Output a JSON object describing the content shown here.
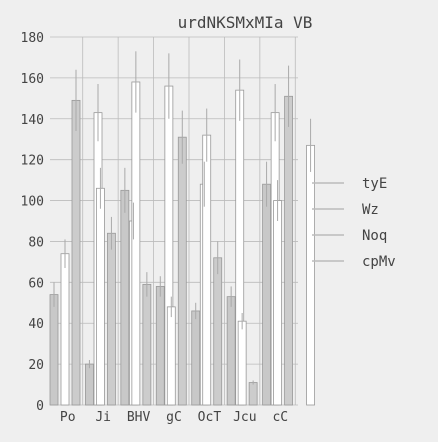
{
  "chart_data": {
    "type": "bar",
    "title": "urdNKSMxMIa VB",
    "xlabel": "",
    "ylabel": "",
    "ylim": [
      0,
      180
    ],
    "yticks": [
      0,
      20,
      40,
      60,
      80,
      100,
      120,
      140,
      160,
      180
    ],
    "grid": true,
    "legend_position": "right",
    "categories": [
      "Po",
      "Ji",
      "BHV",
      "gC",
      "OcT",
      "Jcu",
      "cC"
    ],
    "series": [
      {
        "name": "tyE",
        "fill": "#c8c8c8",
        "values": [
          54,
          20,
          105,
          58,
          46,
          53,
          108
        ],
        "errors": [
          6,
          2,
          11,
          5,
          4,
          5,
          11
        ]
      },
      {
        "name": "Wz",
        "fill": "#ffffff",
        "values": [
          74,
          106,
          158,
          48,
          132,
          41,
          100
        ],
        "errors": [
          7,
          10,
          15,
          5,
          13,
          4,
          10
        ]
      },
      {
        "name": "Noq",
        "fill": "#cccccc",
        "values": [
          149,
          84,
          59,
          131,
          72,
          11,
          151
        ],
        "errors": [
          15,
          8,
          6,
          13,
          8,
          1,
          15
        ]
      },
      {
        "name": "cpMv",
        "fill": "#ffffff",
        "values": [
          143,
          90,
          156,
          108,
          154,
          143,
          127
        ],
        "errors": [
          14,
          9,
          16,
          11,
          15,
          14,
          13
        ]
      }
    ],
    "colors": {
      "background": "#efefef",
      "grid": "#bbbbbb",
      "bar_stroke": "#999999",
      "error_bar": "#aaaaaa",
      "text": "#444444"
    }
  }
}
